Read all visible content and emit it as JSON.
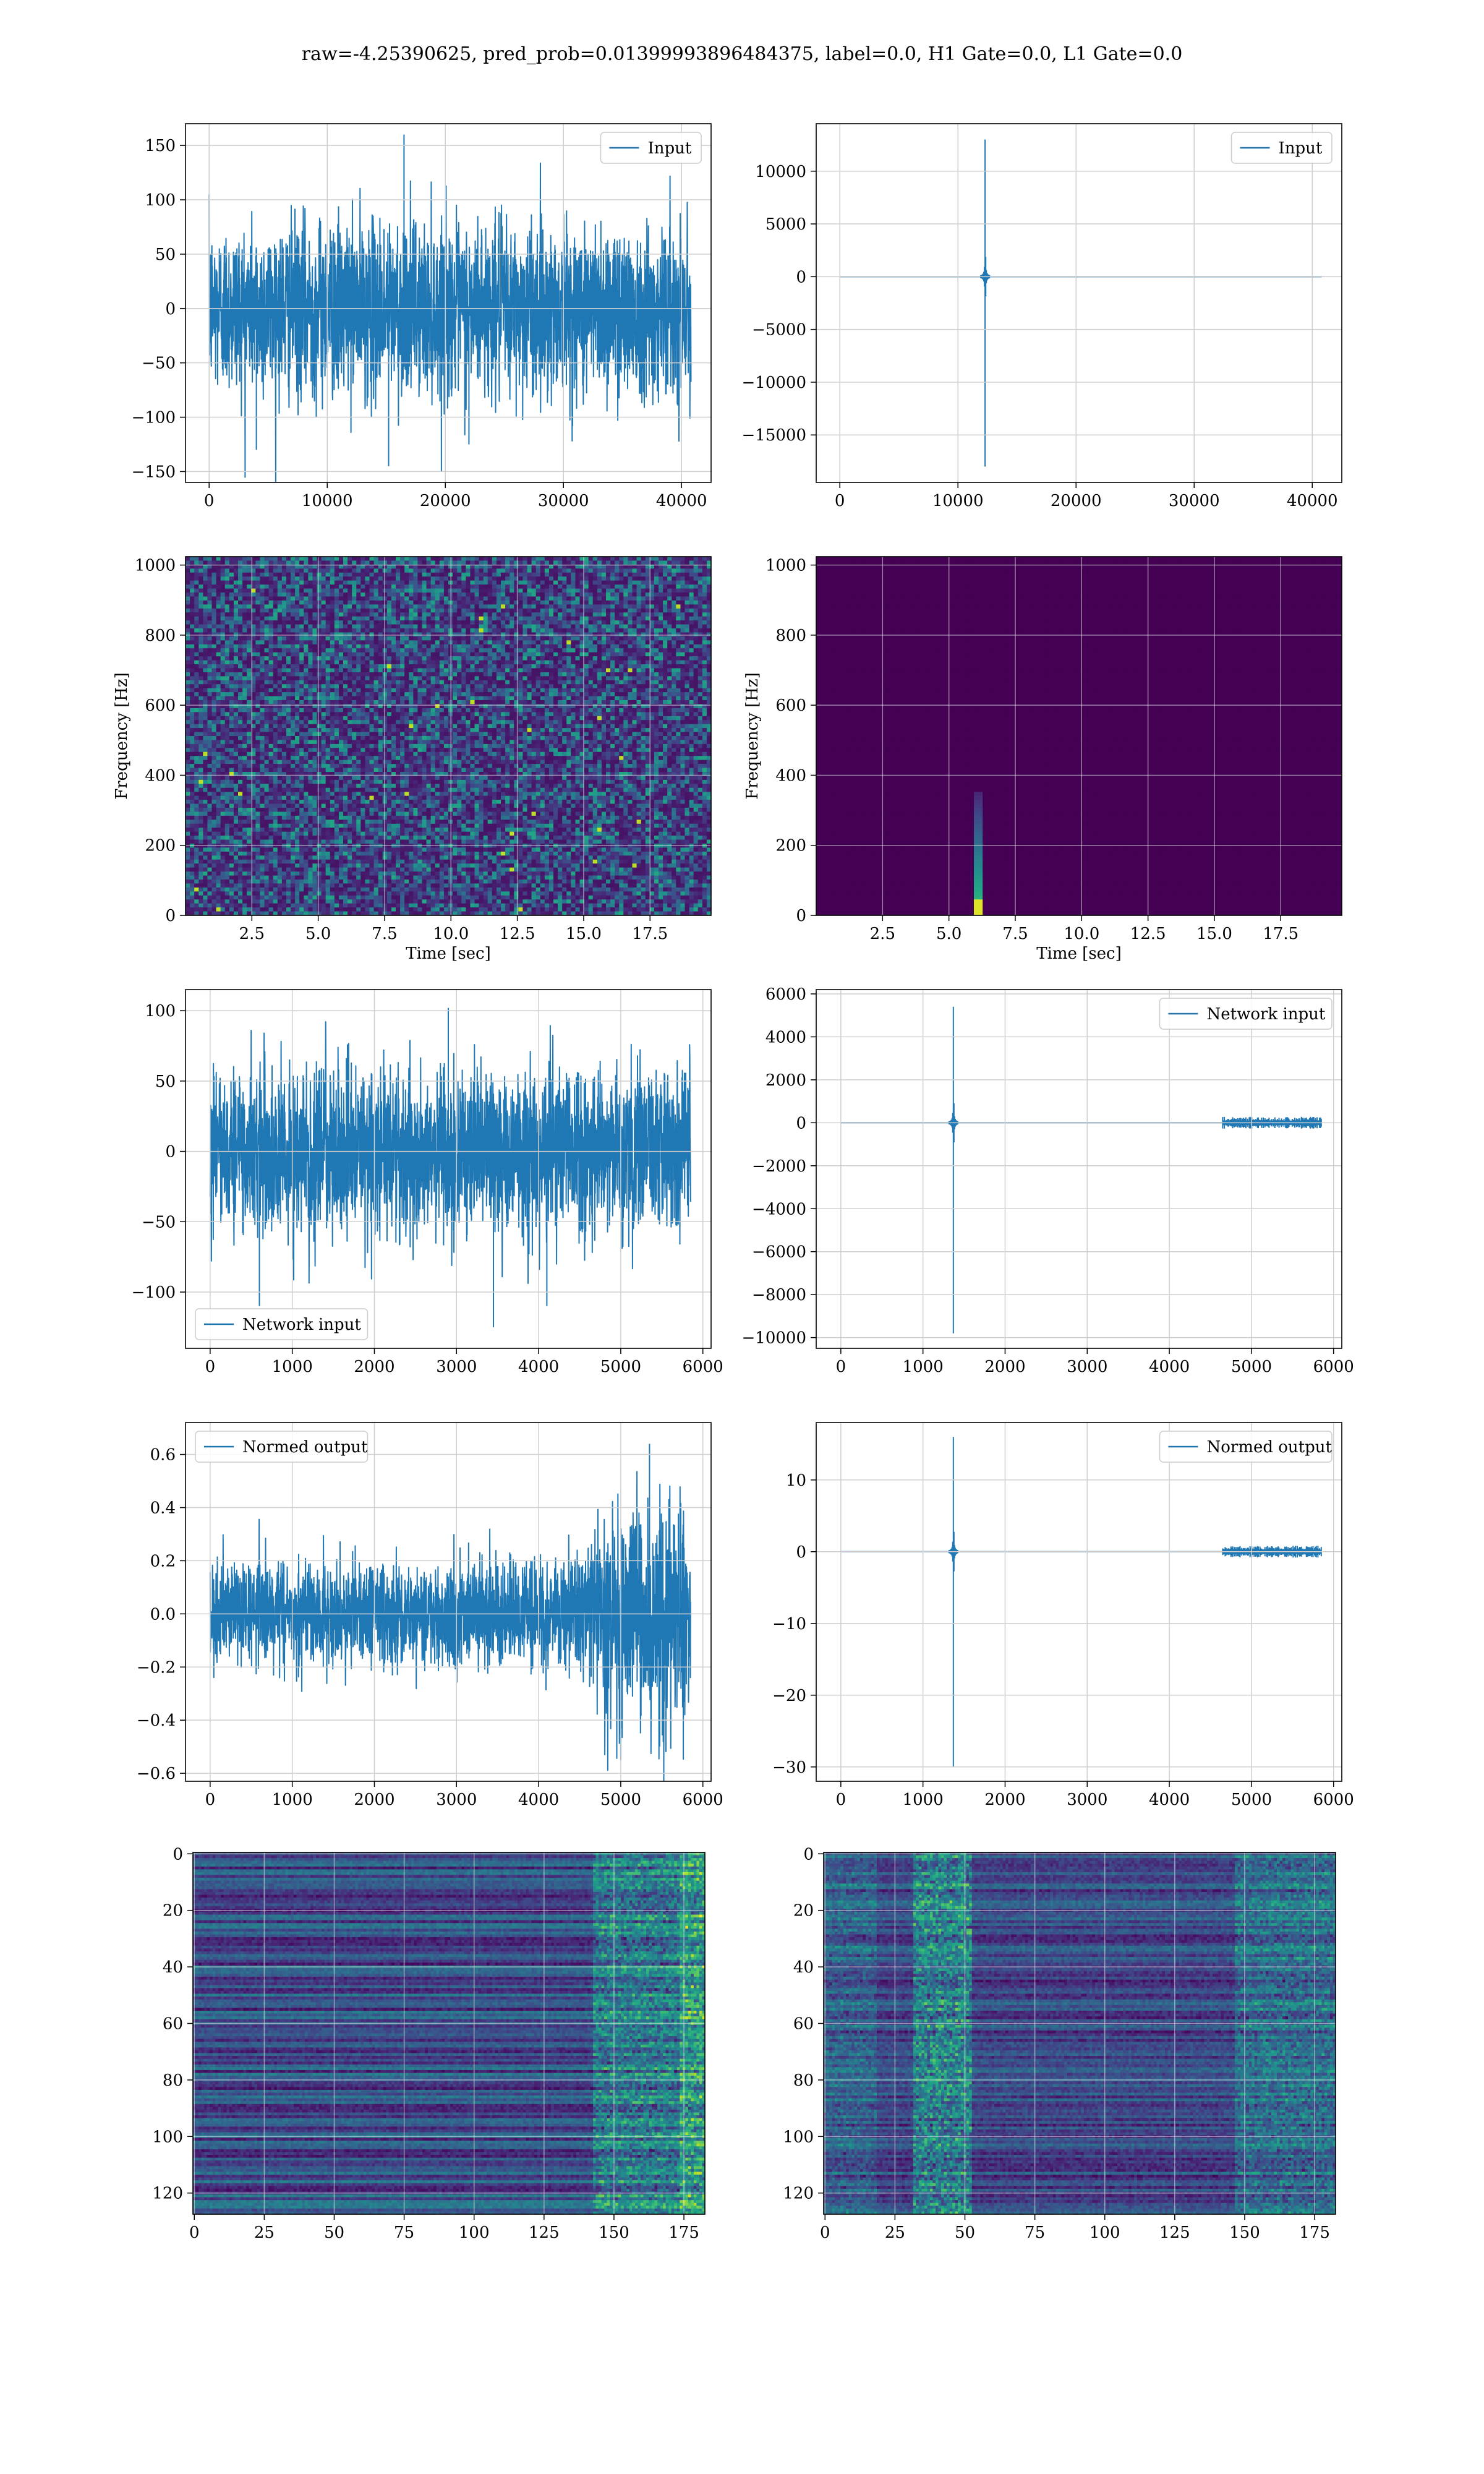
{
  "suptitle": "raw=-4.25390625, pred_prob=0.01399993896484375, label=0.0, H1 Gate=0.0, L1 Gate=0.0",
  "colors": {
    "line": "#1f77b4",
    "grid": "#cfcfcf",
    "viridis": [
      "#440154",
      "#482475",
      "#414487",
      "#355f8d",
      "#2a788e",
      "#21918c",
      "#22a884",
      "#44bf70",
      "#7ad151",
      "#bddf26",
      "#fde725"
    ]
  },
  "chart_data": [
    {
      "id": "input-h1",
      "type": "line",
      "legend": "top-right",
      "series": [
        {
          "name": "Input",
          "amplitude_envelope": [
            [
              0,
              90
            ],
            [
              10000,
              95
            ],
            [
              20000,
              92
            ],
            [
              30000,
              93
            ],
            [
              40800,
              90
            ]
          ],
          "peaks": [
            [
              16500,
              160
            ],
            [
              15200,
              -145
            ],
            [
              4000,
              -130
            ],
            [
              22000,
              -125
            ]
          ]
        }
      ],
      "xlim": [
        -2000,
        42500
      ],
      "ylim": [
        -160,
        170
      ],
      "xticks": [
        0,
        10000,
        20000,
        30000,
        40000
      ],
      "xticklabels": [
        "0",
        "10000",
        "20000",
        "30000",
        "40000"
      ],
      "yticks": [
        -150,
        -100,
        -50,
        0,
        50,
        100,
        150
      ],
      "yticklabels": [
        "−150",
        "−100",
        "−50",
        "0",
        "50",
        "100",
        "150"
      ],
      "xlabel": "",
      "ylabel": "",
      "grid": true
    },
    {
      "id": "input-l1",
      "type": "line",
      "legend": "top-right",
      "series": [
        {
          "name": "Input",
          "baseline_range": [
            0,
            40800
          ],
          "spike_x": 12300,
          "spike_max": 13000,
          "spike_min": -18000
        }
      ],
      "xlim": [
        -2000,
        42500
      ],
      "ylim": [
        -19500,
        14500
      ],
      "xticks": [
        0,
        10000,
        20000,
        30000,
        40000
      ],
      "xticklabels": [
        "0",
        "10000",
        "20000",
        "30000",
        "40000"
      ],
      "yticks": [
        -15000,
        -10000,
        -5000,
        0,
        5000,
        10000
      ],
      "yticklabels": [
        "−15000",
        "−10000",
        "−5000",
        "0",
        "5000",
        "10000"
      ],
      "xlabel": "",
      "ylabel": "",
      "grid": true
    },
    {
      "id": "spec-h1",
      "type": "heatmap",
      "pattern": "noise",
      "xlim": [
        0,
        19.8
      ],
      "ylim": [
        0,
        1024
      ],
      "xticks": [
        2.5,
        5.0,
        7.5,
        10.0,
        12.5,
        15.0,
        17.5
      ],
      "xticklabels": [
        "2.5",
        "5.0",
        "7.5",
        "10.0",
        "12.5",
        "15.0",
        "17.5"
      ],
      "yticks": [
        0,
        200,
        400,
        600,
        800,
        1000
      ],
      "yticklabels": [
        "0",
        "200",
        "400",
        "600",
        "800",
        "1000"
      ],
      "xlabel": "Time [sec]",
      "ylabel": "Frequency [Hz]",
      "grid": true
    },
    {
      "id": "spec-l1",
      "type": "heatmap",
      "pattern": "glitch",
      "glitch_time": 6.0,
      "xlim": [
        0,
        19.8
      ],
      "ylim": [
        0,
        1024
      ],
      "xticks": [
        2.5,
        5.0,
        7.5,
        10.0,
        12.5,
        15.0,
        17.5
      ],
      "xticklabels": [
        "2.5",
        "5.0",
        "7.5",
        "10.0",
        "12.5",
        "15.0",
        "17.5"
      ],
      "yticks": [
        0,
        200,
        400,
        600,
        800,
        1000
      ],
      "yticklabels": [
        "0",
        "200",
        "400",
        "600",
        "800",
        "1000"
      ],
      "xlabel": "Time [sec]",
      "ylabel": "Frequency [Hz]",
      "grid": true
    },
    {
      "id": "netin-h1",
      "type": "line",
      "legend": "bottom-left",
      "series": [
        {
          "name": "Network input",
          "amplitude_envelope": [
            [
              0,
              60
            ],
            [
              1500,
              70
            ],
            [
              3000,
              68
            ],
            [
              4500,
              70
            ],
            [
              5850,
              65
            ]
          ],
          "peaks": [
            [
              2900,
              102
            ],
            [
              600,
              -110
            ],
            [
              3450,
              -125
            ],
            [
              4100,
              -110
            ]
          ]
        }
      ],
      "xlim": [
        -300,
        6100
      ],
      "ylim": [
        -140,
        115
      ],
      "xticks": [
        0,
        1000,
        2000,
        3000,
        4000,
        5000,
        6000
      ],
      "xticklabels": [
        "0",
        "1000",
        "2000",
        "3000",
        "4000",
        "5000",
        "6000"
      ],
      "yticks": [
        -100,
        -50,
        0,
        50,
        100
      ],
      "yticklabels": [
        "−100",
        "−50",
        "0",
        "50",
        "100"
      ],
      "xlabel": "",
      "ylabel": "",
      "grid": true
    },
    {
      "id": "netin-l1",
      "type": "line",
      "legend": "top-right",
      "series": [
        {
          "name": "Network input",
          "baseline_range": [
            0,
            5850
          ],
          "spike_x": 1370,
          "spike_max": 5400,
          "spike_min": -9800,
          "noise_band": [
            4650,
            5850
          ]
        }
      ],
      "xlim": [
        -300,
        6100
      ],
      "ylim": [
        -10500,
        6200
      ],
      "xticks": [
        0,
        1000,
        2000,
        3000,
        4000,
        5000,
        6000
      ],
      "xticklabels": [
        "0",
        "1000",
        "2000",
        "3000",
        "4000",
        "5000",
        "6000"
      ],
      "yticks": [
        -10000,
        -8000,
        -6000,
        -4000,
        -2000,
        0,
        2000,
        4000,
        6000
      ],
      "yticklabels": [
        "−10000",
        "−8000",
        "−6000",
        "−4000",
        "−2000",
        "0",
        "2000",
        "4000",
        "6000"
      ],
      "xlabel": "",
      "ylabel": "",
      "grid": true
    },
    {
      "id": "normed-h1",
      "type": "line",
      "legend": "top-left",
      "series": [
        {
          "name": "Normed output",
          "amplitude_envelope": [
            [
              0,
              0.22
            ],
            [
              2500,
              0.22
            ],
            [
              4600,
              0.25
            ],
            [
              4800,
              0.45
            ],
            [
              5400,
              0.5
            ],
            [
              5850,
              0.45
            ]
          ],
          "peaks": [
            [
              5350,
              0.64
            ],
            [
              5000,
              -0.55
            ],
            [
              5550,
              -0.52
            ]
          ]
        }
      ],
      "xlim": [
        -300,
        6100
      ],
      "ylim": [
        -0.63,
        0.72
      ],
      "xticks": [
        0,
        1000,
        2000,
        3000,
        4000,
        5000,
        6000
      ],
      "xticklabels": [
        "0",
        "1000",
        "2000",
        "3000",
        "4000",
        "5000",
        "6000"
      ],
      "yticks": [
        -0.6,
        -0.4,
        -0.2,
        0.0,
        0.2,
        0.4,
        0.6
      ],
      "yticklabels": [
        "−0.6",
        "−0.4",
        "−0.2",
        "0.0",
        "0.2",
        "0.4",
        "0.6"
      ],
      "xlabel": "",
      "ylabel": "",
      "grid": true
    },
    {
      "id": "normed-l1",
      "type": "line",
      "legend": "top-right",
      "series": [
        {
          "name": "Normed output",
          "baseline_range": [
            0,
            5850
          ],
          "spike_x": 1370,
          "spike_max": 16,
          "spike_min": -30,
          "noise_band": [
            4650,
            5850
          ]
        }
      ],
      "xlim": [
        -300,
        6100
      ],
      "ylim": [
        -32,
        18
      ],
      "xticks": [
        0,
        1000,
        2000,
        3000,
        4000,
        5000,
        6000
      ],
      "xticklabels": [
        "0",
        "1000",
        "2000",
        "3000",
        "4000",
        "5000",
        "6000"
      ],
      "yticks": [
        -30,
        -20,
        -10,
        0,
        10
      ],
      "yticklabels": [
        "−30",
        "−20",
        "−10",
        "0",
        "10"
      ],
      "xlabel": "",
      "ylabel": "",
      "grid": true
    },
    {
      "id": "feat-h1",
      "type": "heatmap",
      "pattern": "stripes-late",
      "rows": 128,
      "cols": 183,
      "y_inverted": true,
      "xlim": [
        -0.5,
        182.5
      ],
      "ylim": [
        -0.5,
        127.5
      ],
      "xticks": [
        0,
        25,
        50,
        75,
        100,
        125,
        150,
        175
      ],
      "xticklabels": [
        "0",
        "25",
        "50",
        "75",
        "100",
        "125",
        "150",
        "175"
      ],
      "yticks": [
        0,
        20,
        40,
        60,
        80,
        100,
        120
      ],
      "yticklabels": [
        "0",
        "20",
        "40",
        "60",
        "80",
        "100",
        "120"
      ],
      "xlabel": "",
      "ylabel": "",
      "grid": true
    },
    {
      "id": "feat-l1",
      "type": "heatmap",
      "pattern": "stripes-glitch",
      "rows": 128,
      "cols": 183,
      "y_inverted": true,
      "glitch_col": 42,
      "xlim": [
        -0.5,
        182.5
      ],
      "ylim": [
        -0.5,
        127.5
      ],
      "xticks": [
        0,
        25,
        50,
        75,
        100,
        125,
        150,
        175
      ],
      "xticklabels": [
        "0",
        "25",
        "50",
        "75",
        "100",
        "125",
        "150",
        "175"
      ],
      "yticks": [
        0,
        20,
        40,
        60,
        80,
        100,
        120
      ],
      "yticklabels": [
        "0",
        "20",
        "40",
        "60",
        "80",
        "100",
        "120"
      ],
      "xlabel": "",
      "ylabel": "",
      "grid": true
    }
  ]
}
